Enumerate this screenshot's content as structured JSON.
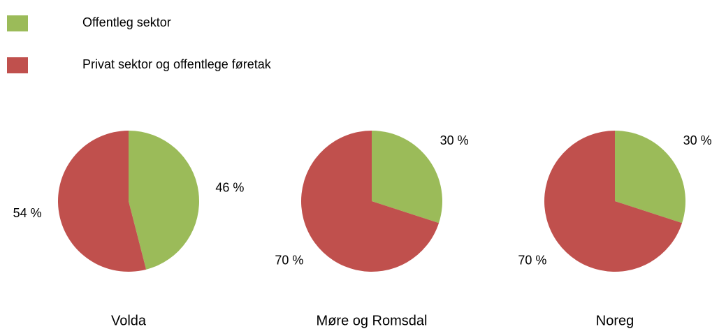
{
  "legend": {
    "items": [
      {
        "name": "Offentleg sektor",
        "color": "#9bbb59"
      },
      {
        "name": "Privat sektor og offentlege føretak",
        "color": "#c0504d"
      }
    ]
  },
  "chart_data": [
    {
      "type": "pie",
      "title": "Volda",
      "values": [
        46,
        54
      ],
      "value_labels": [
        "46 %",
        "54 %"
      ]
    },
    {
      "type": "pie",
      "title": "Møre og Romsdal",
      "values": [
        30,
        70
      ],
      "value_labels": [
        "30 %",
        "70 %"
      ]
    },
    {
      "type": "pie",
      "title": "Noreg",
      "values": [
        30,
        70
      ],
      "value_labels": [
        "30 %",
        "70 %"
      ]
    }
  ]
}
